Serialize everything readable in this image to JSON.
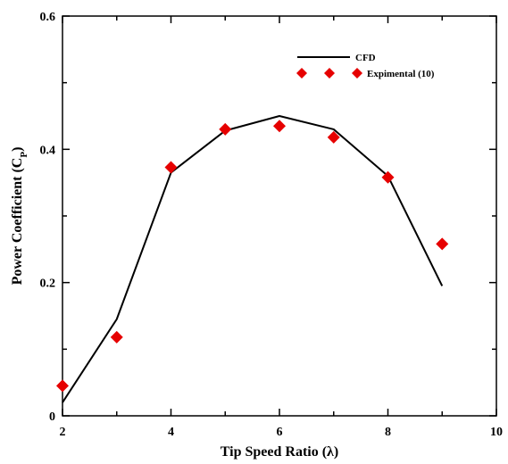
{
  "chart_data": {
    "type": "line",
    "xlabel": "Tip Speed Ratio (λ)",
    "ylabel_main": "Power Coefficient (C",
    "ylabel_sub": "P",
    "ylabel_close": ")",
    "xlim": [
      2,
      10
    ],
    "ylim": [
      0,
      0.6
    ],
    "xticks": [
      2,
      4,
      6,
      8,
      10
    ],
    "yticks": [
      0,
      0.2,
      0.4,
      0.6
    ],
    "ytick_labels": [
      "0",
      "0.2",
      "0.4",
      "0.6"
    ],
    "grid": false,
    "legend_position": "top-right",
    "series": [
      {
        "name": "CFD",
        "kind": "line",
        "color": "#000000",
        "x": [
          2,
          3,
          4,
          5,
          6,
          7,
          8,
          9
        ],
        "y": [
          0.02,
          0.145,
          0.365,
          0.428,
          0.45,
          0.43,
          0.36,
          0.195
        ]
      },
      {
        "name": "Expimental (10)",
        "kind": "scatter",
        "marker": "diamond",
        "color": "#e60000",
        "x": [
          2,
          3,
          4,
          5,
          6,
          7,
          8,
          9
        ],
        "y": [
          0.045,
          0.118,
          0.373,
          0.43,
          0.435,
          0.418,
          0.358,
          0.258
        ]
      }
    ]
  }
}
